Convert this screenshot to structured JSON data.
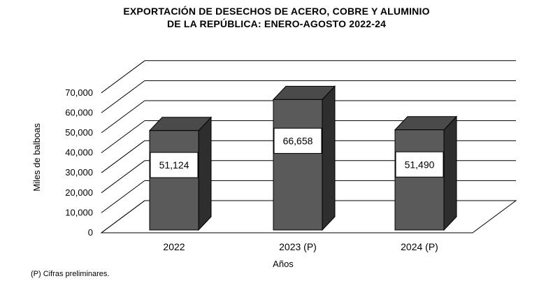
{
  "chart_data": {
    "type": "bar",
    "title_lines": [
      "EXPORTACIÓN  DE  DESECHOS  DE  ACERO,  COBRE  Y ALUMINIO",
      "DE  LA  REPÚBLICA:  ENERO-AGOSTO  2022-24"
    ],
    "categories": [
      "2022",
      "2023 (P)",
      "2024 (P)"
    ],
    "values": [
      51124,
      66658,
      51490
    ],
    "value_labels": [
      "51,124",
      "66,658",
      "51,490"
    ],
    "xlabel": "Años",
    "ylabel": "Miles de balboas",
    "ylim": [
      0,
      70000
    ],
    "yticks": [
      0,
      10000,
      20000,
      30000,
      40000,
      50000,
      60000,
      70000
    ],
    "ytick_labels": [
      "0",
      "10,000",
      "20,000",
      "30,000",
      "40,000",
      "50,000",
      "60,000",
      "70,000"
    ],
    "grid": true,
    "style": "3d-bar",
    "colors": {
      "bar_front": "#5a5a5a",
      "bar_side": "#2e2e2e",
      "bar_top": "#4a4a4a",
      "label_box": "#ffffff",
      "grid": "#000000"
    }
  },
  "footnote": "(P) Cifras preliminares."
}
